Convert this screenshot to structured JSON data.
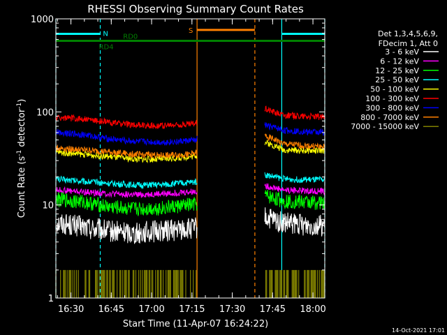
{
  "chart_data": {
    "type": "line",
    "title": "RHESSI Observing Summary Count Rates",
    "xlabel": "Start Time (11-Apr-07 16:24:22)",
    "ylabel_main": "Count Rate (s",
    "ylabel_sup1": "-1",
    "ylabel_mid": " detector",
    "ylabel_sup2": "-1",
    "ylabel_end": ")",
    "footer_date": "14-Oct-2021 17:01",
    "x_unit": "minutes since 16:24:22",
    "x_range": [
      0,
      100
    ],
    "y_scale": "log",
    "y_range": [
      1,
      1000
    ],
    "x_ticks": [
      {
        "label": "16:30",
        "x": 5.6
      },
      {
        "label": "16:45",
        "x": 20.6
      },
      {
        "label": "17:00",
        "x": 35.6
      },
      {
        "label": "17:15",
        "x": 50.6
      },
      {
        "label": "17:30",
        "x": 65.6
      },
      {
        "label": "17:45",
        "x": 80.6
      },
      {
        "label": "18:00",
        "x": 95.6
      }
    ],
    "y_ticks": [
      {
        "label": "1",
        "y": 1
      },
      {
        "label": "10",
        "y": 10
      },
      {
        "label": "100",
        "y": 100
      },
      {
        "label": "1000",
        "y": 1000
      }
    ],
    "legend_header": [
      "Det 1,3,4,5,6,9,",
      "FDecim 1, Att 0"
    ],
    "legend_placement": "right",
    "gaps": [
      [
        52.5,
        77.6
      ]
    ],
    "series": [
      {
        "name": "3 - 6 keV",
        "color": "#ffffff",
        "values": [
          [
            0,
            6.5
          ],
          [
            10,
            5.8
          ],
          [
            20,
            5.2
          ],
          [
            30,
            5.0
          ],
          [
            40,
            5.3
          ],
          [
            50,
            5.5
          ],
          [
            78,
            7.2
          ],
          [
            85,
            6.3
          ],
          [
            100,
            6.0
          ]
        ]
      },
      {
        "name": "6 - 12 keV",
        "color": "#ff00ff",
        "values": [
          [
            0,
            14.5
          ],
          [
            10,
            13.8
          ],
          [
            20,
            13.2
          ],
          [
            30,
            12.8
          ],
          [
            40,
            13.2
          ],
          [
            50,
            13.8
          ],
          [
            78,
            16.0
          ],
          [
            85,
            14.5
          ],
          [
            100,
            14.0
          ]
        ]
      },
      {
        "name": "12 - 25 keV",
        "color": "#00ff00",
        "values": [
          [
            0,
            11.5
          ],
          [
            10,
            10.8
          ],
          [
            20,
            9.5
          ],
          [
            30,
            9.0
          ],
          [
            40,
            9.3
          ],
          [
            50,
            10.0
          ],
          [
            78,
            12.5
          ],
          [
            85,
            11.0
          ],
          [
            100,
            10.5
          ]
        ]
      },
      {
        "name": "25 - 50 keV",
        "color": "#00ffff",
        "values": [
          [
            0,
            19.0
          ],
          [
            10,
            18.0
          ],
          [
            20,
            17.0
          ],
          [
            30,
            16.3
          ],
          [
            40,
            16.5
          ],
          [
            50,
            17.5
          ],
          [
            78,
            21.0
          ],
          [
            85,
            19.0
          ],
          [
            100,
            18.5
          ]
        ]
      },
      {
        "name": "50 - 100 keV",
        "color": "#ffff00",
        "values": [
          [
            0,
            37
          ],
          [
            10,
            35
          ],
          [
            20,
            33
          ],
          [
            30,
            31
          ],
          [
            40,
            31
          ],
          [
            50,
            33
          ],
          [
            78,
            47
          ],
          [
            85,
            39
          ],
          [
            100,
            38
          ]
        ]
      },
      {
        "name": "100 - 300 keV",
        "color": "#ff0000",
        "values": [
          [
            0,
            87
          ],
          [
            10,
            84
          ],
          [
            20,
            77
          ],
          [
            30,
            72
          ],
          [
            40,
            71
          ],
          [
            50,
            74
          ],
          [
            78,
            108
          ],
          [
            85,
            92
          ],
          [
            100,
            88
          ]
        ]
      },
      {
        "name": "300 - 800 keV",
        "color": "#0000ff",
        "values": [
          [
            0,
            61
          ],
          [
            10,
            57
          ],
          [
            20,
            51
          ],
          [
            30,
            48
          ],
          [
            40,
            47
          ],
          [
            50,
            49
          ],
          [
            78,
            72
          ],
          [
            85,
            63
          ],
          [
            100,
            60
          ]
        ]
      },
      {
        "name": "800 - 7000 keV",
        "color": "#ff8000",
        "values": [
          [
            0,
            41
          ],
          [
            10,
            39
          ],
          [
            20,
            37
          ],
          [
            30,
            35
          ],
          [
            40,
            34
          ],
          [
            50,
            35
          ],
          [
            78,
            55
          ],
          [
            85,
            45
          ],
          [
            100,
            42
          ]
        ]
      },
      {
        "name": "7000 - 15000 keV",
        "color": "#808000",
        "values": [
          [
            0,
            1.5
          ],
          [
            50,
            1.5
          ],
          [
            78,
            1.5
          ],
          [
            100,
            1.5
          ]
        ]
      }
    ],
    "annotations": {
      "n": {
        "label": "N",
        "color": "#00ffff",
        "bars": [
          [
            0,
            16.5
          ],
          [
            84,
            100
          ]
        ],
        "y": 690
      },
      "s": {
        "label": "S",
        "color": "#ff8000",
        "bars": [
          [
            52.5,
            74
          ]
        ],
        "y": 760
      },
      "rd": {
        "label_a": "RD0",
        "label_b": "RD4",
        "color": "#008000",
        "bars": [
          [
            0,
            100
          ]
        ],
        "y": 580
      },
      "vlines": [
        {
          "x": 0,
          "color": "#00ffff",
          "dash": true
        },
        {
          "x": 16.5,
          "color": "#00ffff",
          "dash": true
        },
        {
          "x": 52.5,
          "color": "#ff8000",
          "dash": false
        },
        {
          "x": 74,
          "color": "#ff8000",
          "dash": true
        },
        {
          "x": 84,
          "color": "#00ffff",
          "dash": false
        },
        {
          "x": 100,
          "color": "#00ffff",
          "dash": true
        }
      ]
    }
  }
}
